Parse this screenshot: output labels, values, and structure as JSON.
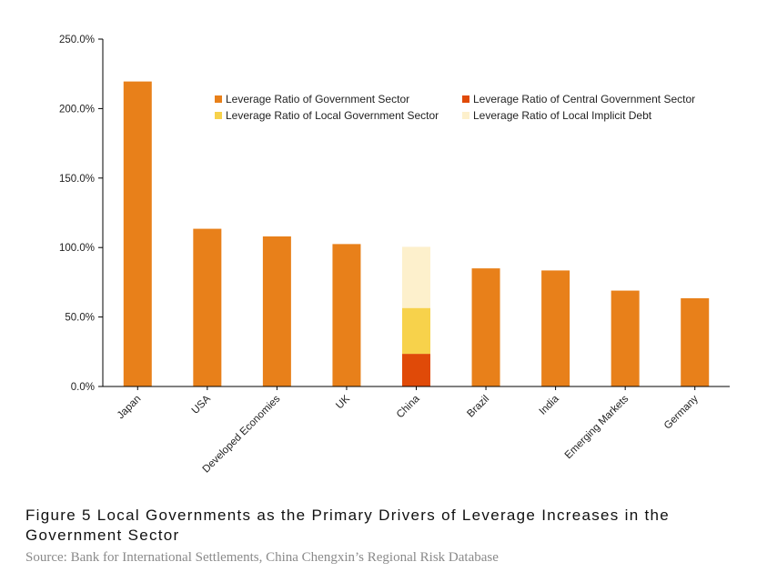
{
  "caption": "Figure 5 Local Governments as the Primary Drivers of Leverage Increases in the Government Sector",
  "source": "Source: Bank for International Settlements, China Chengxin’s Regional Risk Database",
  "chart_data": {
    "type": "bar",
    "stacked": true,
    "categories": [
      "Japan",
      "USA",
      "Developed Economies",
      "UK",
      "China",
      "Brazil",
      "India",
      "Emerging Markets",
      "Germany"
    ],
    "y_ticks": [
      "0.0%",
      "50.0%",
      "100.0%",
      "150.0%",
      "200.0%",
      "250.0%"
    ],
    "ylim": [
      0,
      250
    ],
    "grid": false,
    "legend_position": "top-right",
    "series": [
      {
        "name": "Leverage Ratio of Government Sector",
        "color": "#E8801A",
        "values": [
          219.5,
          113.5,
          108,
          102.5,
          null,
          85,
          83.5,
          69,
          63.5
        ]
      },
      {
        "name": "Leverage Ratio of Central Government Sector",
        "color": "#E04A08",
        "values": [
          null,
          null,
          null,
          null,
          23.5,
          null,
          null,
          null,
          null
        ]
      },
      {
        "name": "Leverage Ratio of Local Government Sector",
        "color": "#F7D24B",
        "values": [
          null,
          null,
          null,
          null,
          33,
          null,
          null,
          null,
          null
        ]
      },
      {
        "name": "Leverage Ratio of Local Implicit Debt",
        "color": "#FDF0CC",
        "values": [
          null,
          null,
          null,
          null,
          44,
          null,
          null,
          null,
          null
        ]
      }
    ]
  }
}
